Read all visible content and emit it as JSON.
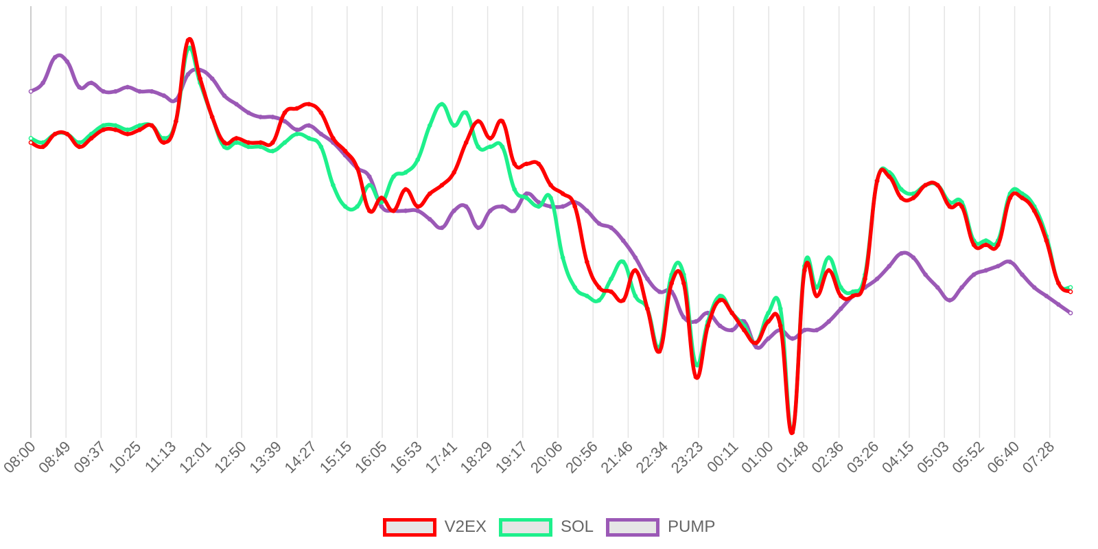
{
  "chart_data": {
    "type": "line",
    "title": "",
    "xlabel": "",
    "ylabel": "",
    "grid": true,
    "legend_position": "bottom",
    "x_ticks": [
      "08:00",
      "08:49",
      "09:37",
      "10:25",
      "11:13",
      "12:01",
      "12:50",
      "13:39",
      "14:27",
      "15:15",
      "16:05",
      "16:53",
      "17:41",
      "18:29",
      "19:17",
      "20:06",
      "20:56",
      "21:46",
      "22:34",
      "23:23",
      "00:11",
      "01:00",
      "01:48",
      "02:36",
      "03:26",
      "04:15",
      "05:03",
      "05:52",
      "06:40",
      "07:28"
    ],
    "series": [
      {
        "name": "V2EX",
        "color": "#ff0000",
        "values": [
          68,
          67,
          70,
          70,
          67,
          69,
          71,
          71,
          70,
          71,
          72,
          68,
          73,
          92,
          83,
          74,
          68,
          69,
          68,
          68,
          68,
          75,
          76,
          77,
          75,
          69,
          66,
          62,
          52,
          55,
          52,
          57,
          53,
          56,
          58,
          61,
          68,
          73,
          69,
          73,
          63,
          63,
          63,
          58,
          56,
          53,
          40,
          34,
          33,
          31,
          38,
          29,
          19,
          35,
          35,
          13,
          25,
          31,
          28,
          24,
          21,
          26,
          25,
          0,
          38,
          32,
          38,
          32,
          32,
          36,
          59,
          60,
          55,
          55,
          58,
          58,
          53,
          53,
          44,
          44,
          44,
          55,
          55,
          52,
          45,
          35,
          33
        ]
      },
      {
        "name": "SOL",
        "color": "#1ef08c",
        "values": [
          69,
          68,
          70,
          70,
          68,
          70,
          72,
          72,
          71,
          72,
          72,
          69,
          73,
          90,
          82,
          74,
          67,
          68,
          67,
          67,
          66,
          68,
          70,
          69,
          67,
          58,
          53,
          53,
          58,
          54,
          60,
          61,
          64,
          72,
          77,
          72,
          75,
          67,
          67,
          67,
          57,
          55,
          53,
          55,
          41,
          34,
          32,
          31,
          36,
          40,
          32,
          29,
          20,
          37,
          37,
          16,
          26,
          32,
          28,
          25,
          21,
          28,
          29,
          0,
          39,
          34,
          41,
          34,
          33,
          37,
          59,
          61,
          57,
          56,
          58,
          58,
          54,
          54,
          45,
          45,
          45,
          56,
          56,
          53,
          46,
          35,
          34
        ]
      },
      {
        "name": "PUMP",
        "color": "#9b59b6",
        "values": [
          80,
          82,
          88,
          87,
          81,
          82,
          80,
          80,
          81,
          80,
          80,
          79,
          78,
          84,
          85,
          83,
          79,
          77,
          75,
          74,
          74,
          73,
          71,
          72,
          70,
          68,
          65,
          62,
          60,
          53,
          52,
          52,
          52,
          50,
          48,
          52,
          53,
          48,
          52,
          53,
          52,
          56,
          54,
          53,
          53,
          54,
          52,
          49,
          48,
          45,
          41,
          36,
          33,
          33,
          27,
          26,
          28,
          25,
          24,
          26,
          20,
          22,
          24,
          22,
          24,
          24,
          26,
          29,
          32,
          34,
          36,
          39,
          42,
          41,
          37,
          34,
          31,
          34,
          37,
          38,
          39,
          40,
          37,
          34,
          32,
          30,
          28
        ]
      }
    ],
    "y_range": [
      0,
      100
    ]
  }
}
